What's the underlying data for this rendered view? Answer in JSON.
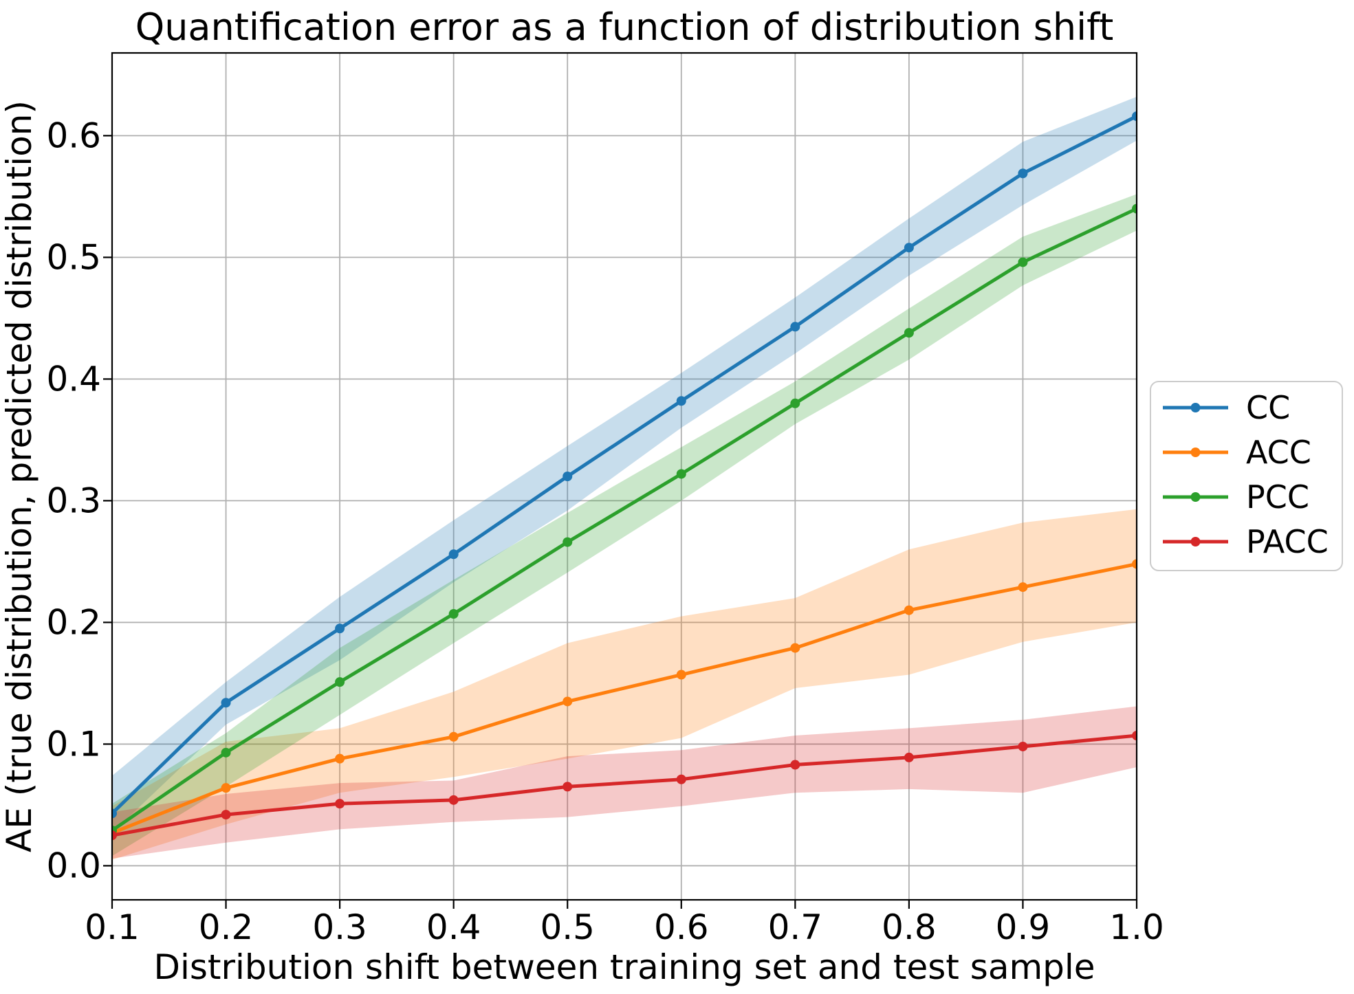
{
  "figure": {
    "background": "#ffffff"
  },
  "style": {
    "grid_color": "#b0b0b0",
    "spine_color": "#000000",
    "tick_color": "#000000",
    "legend_border_color": "#cccccc",
    "legend_background": "#ffffff"
  },
  "chart_data": {
    "type": "line",
    "title": "Quantification error as a function of distribution shift",
    "xlabel": "Distribution shift between training set and test sample",
    "ylabel": "AE (true distribution, predicted distribution)",
    "grid": true,
    "legend_position": "center right outside",
    "xlim": [
      0.1,
      1.0
    ],
    "ylim": [
      -0.028,
      0.668
    ],
    "xticks": [
      "0.1",
      "0.2",
      "0.3",
      "0.4",
      "0.5",
      "0.6",
      "0.7",
      "0.8",
      "0.9",
      "1.0"
    ],
    "yticks": [
      "0.0",
      "0.1",
      "0.2",
      "0.3",
      "0.4",
      "0.5",
      "0.6"
    ],
    "x": [
      0.1,
      0.2,
      0.3,
      0.4,
      0.5,
      0.6,
      0.7,
      0.8,
      0.9,
      1.0
    ],
    "band_opacity": 0.25,
    "series": [
      {
        "name": "CC",
        "color": "#1f77b4",
        "values": [
          0.043,
          0.134,
          0.195,
          0.256,
          0.32,
          0.382,
          0.443,
          0.508,
          0.569,
          0.616
        ],
        "band_lower": [
          0.027,
          0.116,
          0.169,
          0.233,
          0.292,
          0.36,
          0.421,
          0.485,
          0.543,
          0.596
        ],
        "band_upper": [
          0.074,
          0.151,
          0.221,
          0.284,
          0.345,
          0.405,
          0.467,
          0.532,
          0.595,
          0.632
        ]
      },
      {
        "name": "ACC",
        "color": "#ff7f0e",
        "values": [
          0.027,
          0.064,
          0.088,
          0.106,
          0.135,
          0.157,
          0.179,
          0.21,
          0.229,
          0.248
        ],
        "band_lower": [
          0.005,
          0.034,
          0.06,
          0.073,
          0.088,
          0.105,
          0.146,
          0.157,
          0.184,
          0.2
        ],
        "band_upper": [
          0.049,
          0.102,
          0.113,
          0.143,
          0.183,
          0.205,
          0.22,
          0.26,
          0.282,
          0.293
        ]
      },
      {
        "name": "PCC",
        "color": "#2ca02c",
        "values": [
          0.029,
          0.093,
          0.151,
          0.207,
          0.266,
          0.322,
          0.38,
          0.438,
          0.496,
          0.54
        ],
        "band_lower": [
          0.008,
          0.065,
          0.124,
          0.183,
          0.241,
          0.3,
          0.363,
          0.416,
          0.477,
          0.522
        ],
        "band_upper": [
          0.051,
          0.109,
          0.179,
          0.235,
          0.29,
          0.344,
          0.398,
          0.458,
          0.517,
          0.552
        ]
      },
      {
        "name": "PACC",
        "color": "#d62728",
        "values": [
          0.025,
          0.042,
          0.051,
          0.054,
          0.065,
          0.071,
          0.083,
          0.089,
          0.098,
          0.107
        ],
        "band_lower": [
          0.006,
          0.019,
          0.03,
          0.036,
          0.04,
          0.049,
          0.06,
          0.063,
          0.06,
          0.081
        ],
        "band_upper": [
          0.044,
          0.059,
          0.068,
          0.07,
          0.09,
          0.095,
          0.107,
          0.113,
          0.12,
          0.131
        ]
      }
    ]
  },
  "legend": {
    "entries": [
      {
        "label": "CC",
        "color": "#1f77b4"
      },
      {
        "label": "ACC",
        "color": "#ff7f0e"
      },
      {
        "label": "PCC",
        "color": "#2ca02c"
      },
      {
        "label": "PACC",
        "color": "#d62728"
      }
    ]
  }
}
